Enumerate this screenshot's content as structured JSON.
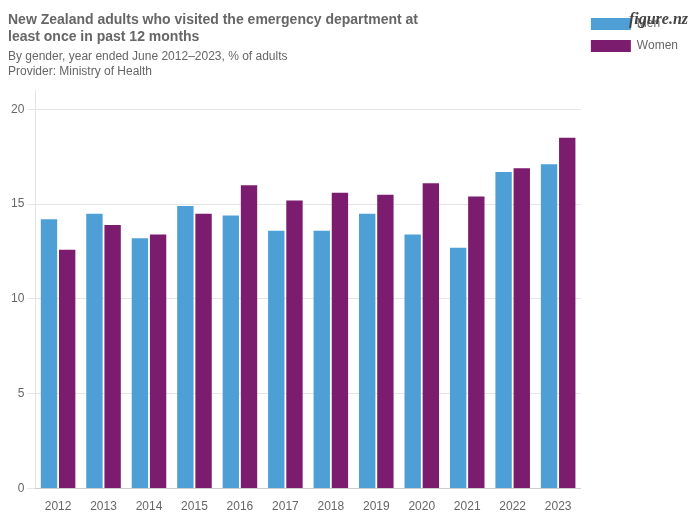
{
  "chart_data": {
    "type": "bar",
    "title": [
      "New Zealand adults who visited the emergency department at",
      "least once in past 12 months"
    ],
    "subtitle": "By gender, year ended June 2012–2023, % of adults",
    "annotations": [
      "Provider: Ministry of Health",
      "figure.nz"
    ],
    "categories": [
      "2012",
      "2013",
      "2014",
      "2015",
      "2016",
      "2017",
      "2018",
      "2019",
      "2020",
      "2021",
      "2022",
      "2023"
    ],
    "series": [
      {
        "name": "Men",
        "color": "#4D9FD6",
        "values": [
          14.2,
          14.5,
          13.2,
          14.9,
          14.4,
          13.6,
          13.6,
          14.5,
          13.4,
          12.7,
          16.7,
          17.1
        ]
      },
      {
        "name": "Women",
        "color": "#7B1C6E",
        "values": [
          12.6,
          13.9,
          13.4,
          14.5,
          16.0,
          15.2,
          15.6,
          15.5,
          16.1,
          15.4,
          16.9,
          18.5
        ]
      }
    ],
    "ylim": [
      0,
      21
    ],
    "yticks": [
      0,
      5,
      10,
      15,
      20
    ],
    "grid": true,
    "legend": "right"
  }
}
